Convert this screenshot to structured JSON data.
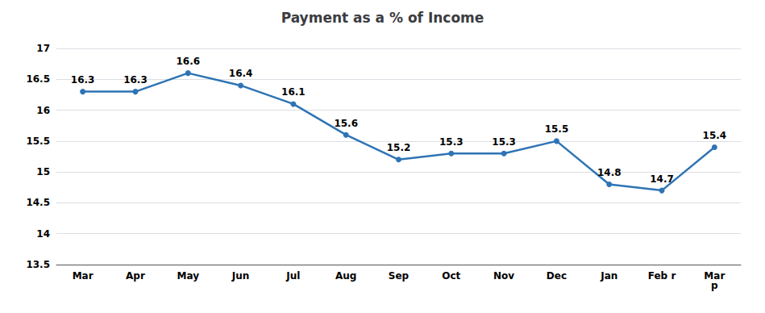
{
  "chart_data": {
    "type": "line",
    "title": "Payment as a % of Income",
    "categories": [
      "Mar",
      "Apr",
      "May",
      "Jun",
      "Jul",
      "Aug",
      "Sep",
      "Oct",
      "Nov",
      "Dec",
      "Jan",
      "Feb r",
      "Mar\np"
    ],
    "values": [
      16.3,
      16.3,
      16.6,
      16.4,
      16.1,
      15.6,
      15.2,
      15.3,
      15.3,
      15.5,
      14.8,
      14.7,
      15.4
    ],
    "color": "#2E74B5",
    "marker": "circle",
    "ylim": [
      13.5,
      17.0
    ],
    "yticks": [
      13.5,
      14.0,
      14.5,
      15.0,
      15.5,
      16.0,
      16.5,
      17.0
    ],
    "grid": true,
    "data_labels": true
  }
}
